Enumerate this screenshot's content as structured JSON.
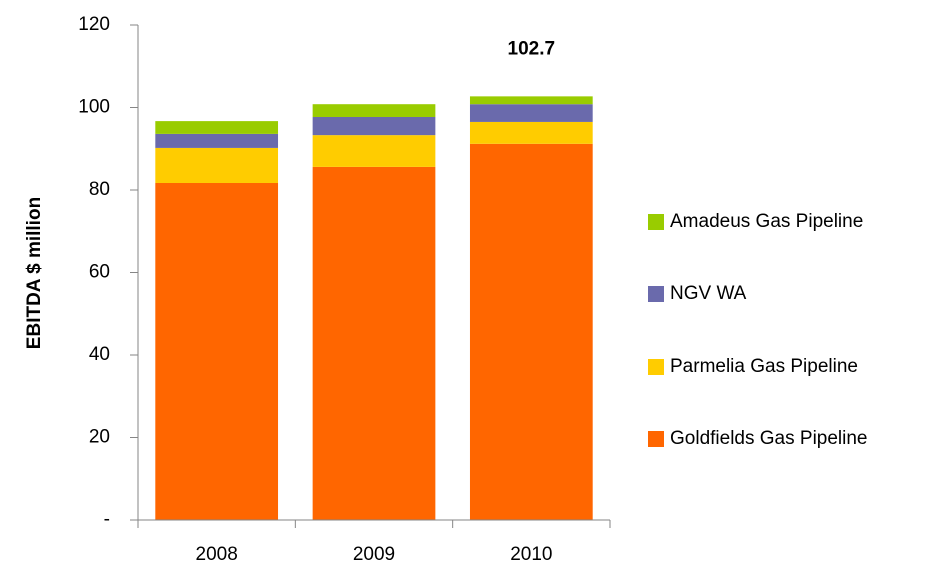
{
  "chart_data": {
    "type": "stacked_bar",
    "y_label": "EBITDA $ million",
    "categories": [
      "2008",
      "2009",
      "2010"
    ],
    "series": [
      {
        "name": "Goldfields Gas Pipeline",
        "color": "#ff6600",
        "values": [
          81.7,
          85.6,
          91.2
        ]
      },
      {
        "name": "Parmelia Gas Pipeline",
        "color": "#ffcc00",
        "values": [
          8.5,
          7.7,
          5.3
        ]
      },
      {
        "name": "NGV WA",
        "color": "#6a6aac",
        "values": [
          3.4,
          4.4,
          4.3
        ]
      },
      {
        "name": "Amadeus Gas Pipeline",
        "color": "#99cc00",
        "values": [
          3.1,
          3.1,
          1.9
        ]
      }
    ],
    "annotation": {
      "text": "102.7",
      "x": "2010"
    },
    "ylim": [
      0,
      120
    ],
    "yticks": [
      {
        "value": 0,
        "label": "-"
      },
      20,
      40,
      60,
      80,
      100,
      120
    ],
    "grid": false,
    "legend": "right"
  }
}
